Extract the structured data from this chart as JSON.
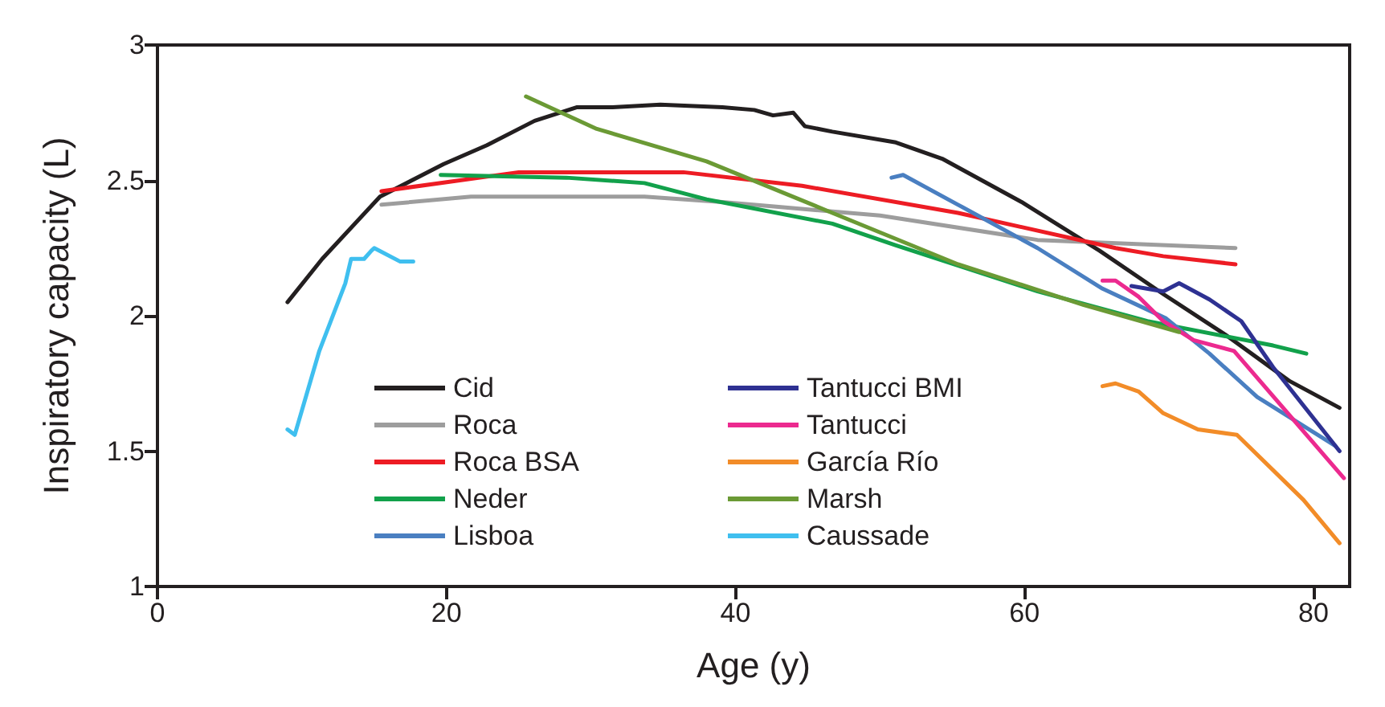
{
  "chart_data": {
    "type": "line",
    "xlabel": "Age (y)",
    "ylabel": "Inspiratory capacity (L)",
    "xlim": [
      0,
      82.5
    ],
    "xticks": [
      0,
      20,
      40,
      60,
      80
    ],
    "ylim": [
      1,
      3
    ],
    "yticks": [
      1,
      1.5,
      2,
      2.5,
      3
    ],
    "grid": false,
    "legend": "bottom left",
    "marker": "none",
    "line_style": "solid",
    "series": [
      {
        "name": "Cid",
        "color": "#231f20",
        "x": [
          9.0,
          11.4,
          15.4,
          19.8,
          22.8,
          26.1,
          29,
          31.5,
          34.8,
          39.1,
          41.3,
          42.6,
          44,
          44.8,
          46.7,
          51.1,
          54.3,
          59.8,
          65.2,
          69.6,
          73.9,
          78.3,
          81.8
        ],
        "values": [
          2.05,
          2.21,
          2.44,
          2.56,
          2.63,
          2.72,
          2.77,
          2.77,
          2.78,
          2.77,
          2.76,
          2.74,
          2.75,
          2.7,
          2.68,
          2.64,
          2.58,
          2.42,
          2.24,
          2.08,
          1.93,
          1.76,
          1.66
        ]
      },
      {
        "name": "Roca",
        "color": "#9d9d9d",
        "x": [
          15.5,
          21.7,
          33.7,
          39.1,
          50,
          60.9,
          74.6
        ],
        "values": [
          2.41,
          2.44,
          2.44,
          2.42,
          2.37,
          2.28,
          2.25
        ]
      },
      {
        "name": "Roca BSA",
        "color": "#ed1c24",
        "x": [
          15.5,
          25,
          33.7,
          36.4,
          44.6,
          55.4,
          66.3,
          69.6,
          74.6
        ],
        "values": [
          2.46,
          2.53,
          2.53,
          2.53,
          2.48,
          2.38,
          2.25,
          2.22,
          2.19
        ]
      },
      {
        "name": "Neder",
        "color": "#12a14b",
        "x": [
          19.6,
          28.3,
          33.7,
          38,
          46.7,
          51.1,
          60.9,
          68.5,
          77.2,
          79.5
        ],
        "values": [
          2.52,
          2.51,
          2.49,
          2.43,
          2.34,
          2.26,
          2.09,
          1.98,
          1.89,
          1.86
        ]
      },
      {
        "name": "Lisboa",
        "color": "#4a7fc1",
        "x": [
          50.8,
          51.6,
          55.4,
          60.9,
          65.4,
          69.8,
          72.8,
          76.1,
          81.5
        ],
        "values": [
          2.51,
          2.52,
          2.41,
          2.25,
          2.1,
          1.99,
          1.86,
          1.7,
          1.52
        ]
      },
      {
        "name": "Tantucci BMI",
        "color": "#2e3192",
        "x": [
          67.4,
          69.6,
          70.7,
          72.8,
          75,
          77.2,
          81.8
        ],
        "values": [
          2.11,
          2.09,
          2.12,
          2.06,
          1.98,
          1.81,
          1.5
        ]
      },
      {
        "name": "Tantucci",
        "color": "#ec2a8f",
        "x": [
          65.4,
          66.3,
          67.9,
          69.6,
          71.7,
          74.5,
          82.1
        ],
        "values": [
          2.13,
          2.13,
          2.07,
          1.98,
          1.91,
          1.87,
          1.4
        ]
      },
      {
        "name": "García Río",
        "color": "#f28c28",
        "x": [
          65.4,
          66.3,
          67.9,
          69.6,
          72,
          74.7,
          79.3,
          81.8
        ],
        "values": [
          1.74,
          1.75,
          1.72,
          1.64,
          1.58,
          1.56,
          1.32,
          1.16
        ]
      },
      {
        "name": "Marsh",
        "color": "#6b9a35",
        "x": [
          25.5,
          30.4,
          38,
          46.7,
          55.4,
          64.1,
          70.7
        ],
        "values": [
          2.81,
          2.69,
          2.57,
          2.38,
          2.19,
          2.04,
          1.94
        ]
      },
      {
        "name": "Caussade",
        "color": "#3fbfef",
        "x": [
          9,
          9.5,
          11.2,
          13,
          13.4,
          14.3,
          14.8,
          15,
          16.8,
          17.7
        ],
        "values": [
          1.58,
          1.56,
          1.87,
          2.12,
          2.21,
          2.21,
          2.24,
          2.25,
          2.2,
          2.2
        ]
      }
    ]
  }
}
